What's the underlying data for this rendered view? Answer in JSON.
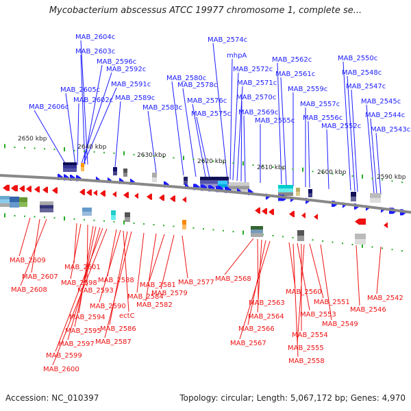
{
  "title": "Mycobacterium abscessus ATCC 19977 chromosome 1, complete se...",
  "footer": {
    "accession": "Accession: NC_010397",
    "summary": "Topology: circular; Length: 5,067,172 bp; Genes: 4,970"
  },
  "colors": {
    "plus_strand": "#1a1aff",
    "minus_strand": "#ee1111",
    "backbone": "#888888",
    "tick": "#22aa22"
  },
  "kbp_labels": [
    "2650 kbp",
    "2640 kbp",
    "2630 kbp",
    "2620 kbp",
    "2610 kbp",
    "2600 kbp",
    "2590 kbp"
  ],
  "top_genes": [
    "MAB_2604c",
    "MAB_2603c",
    "MAB_2596c",
    "MAB_2592c",
    "MAB_2591c",
    "MAB_2605c",
    "MAB_2602c",
    "MAB_2589c",
    "MAB_2606c",
    "MAB_2583c",
    "MAB_2580c",
    "MAB_2578c",
    "MAB_2576c",
    "MAB_2575c",
    "MAB_2574c",
    "mhpA",
    "MAB_2572c",
    "MAB_2571c",
    "MAB_2570c",
    "MAB_2569c",
    "MAB_2565c",
    "MAB_2562c",
    "MAB_2561c",
    "MAB_2559c",
    "MAB_2557c",
    "MAB_2556c",
    "MAB_2552c",
    "MAB_2550c",
    "MAB_2548c",
    "MAB_2547c",
    "MAB_2545c",
    "MAB_2544c",
    "MAB_2543c"
  ],
  "bottom_genes": [
    "MAB_2609",
    "MAB_2607",
    "MAB_2608",
    "MAB_2601",
    "MAB_2598",
    "MAB_2593",
    "MAB_2594",
    "MAB_2595",
    "MAB_2597",
    "MAB_2599",
    "MAB_2600",
    "MAB_2588",
    "MAB_2590",
    "ectC",
    "MAB_2586",
    "MAB_2587",
    "MAB_2584",
    "MAB_2582",
    "MAB_2581",
    "MAB_2579",
    "MAB_2577",
    "MAB_2568",
    "MAB_2563",
    "MAB_2564",
    "MAB_2566",
    "MAB_2567",
    "MAB_2560",
    "MAB_2553",
    "MAB_2554",
    "MAB_2555",
    "MAB_2558",
    "MAB_2551",
    "MAB_2549",
    "MAB_2546",
    "MAB_2542"
  ]
}
